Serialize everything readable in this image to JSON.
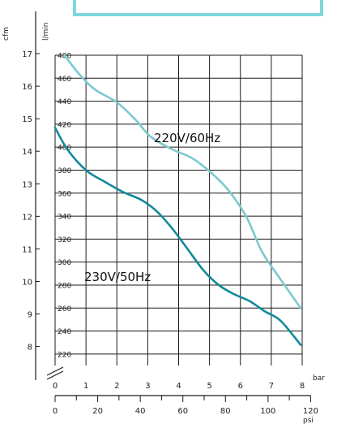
{
  "colors": {
    "banner_border": "#7fd6dd",
    "grid": "#1a1a1a",
    "series_220": "#7cc9d1",
    "series_230": "#12899a"
  },
  "chart_data": {
    "type": "line",
    "title": "",
    "units": {
      "cfm": "cfm",
      "lmin": "l/min",
      "bar": "bar",
      "psi": "psi"
    },
    "x": {
      "label": "bar",
      "range": [
        0,
        8
      ],
      "ticks": [
        "0",
        "1",
        "2",
        "3",
        "4",
        "5",
        "6",
        "7",
        "8"
      ]
    },
    "x_psi": {
      "label": "psi",
      "range": [
        0,
        120
      ],
      "ticks": [
        "0",
        "20",
        "40",
        "60",
        "80",
        "100",
        "120"
      ]
    },
    "y": {
      "label": "l/min",
      "range": [
        210,
        480
      ],
      "grid_lines_at": [
        220,
        240,
        260,
        280,
        300,
        320,
        340,
        360,
        380,
        400,
        420,
        440,
        460,
        480
      ],
      "ticks": [
        "220",
        "240",
        "260",
        "280",
        "300",
        "320",
        "340",
        "360",
        "380",
        "400",
        "420",
        "440",
        "460",
        "480"
      ]
    },
    "y_cfm": {
      "label": "cfm",
      "ticks": [
        "8",
        "9",
        "10",
        "11",
        "12",
        "13",
        "14",
        "15",
        "16",
        "17"
      ]
    },
    "grid": true,
    "series": [
      {
        "name": "220V/60Hz",
        "color": "#7cc9d1",
        "x": [
          0.3,
          0.8,
          1.3,
          2.0,
          2.6,
          3.1,
          3.8,
          4.4,
          5.0,
          5.6,
          6.2,
          6.7,
          7.3,
          7.95
        ],
        "y": [
          480,
          463,
          450,
          439,
          424,
          409,
          398,
          391,
          379,
          363,
          339,
          309,
          285,
          260
        ]
      },
      {
        "name": "230V/50Hz",
        "color": "#12899a",
        "x": [
          0.0,
          0.4,
          1.0,
          1.6,
          2.2,
          2.8,
          3.3,
          3.8,
          4.3,
          4.8,
          5.3,
          5.8,
          6.3,
          6.8,
          7.3,
          7.95
        ],
        "y": [
          417,
          398,
          380,
          370,
          361,
          354,
          344,
          329,
          311,
          293,
          280,
          272,
          266,
          257,
          249,
          228
        ]
      }
    ]
  }
}
